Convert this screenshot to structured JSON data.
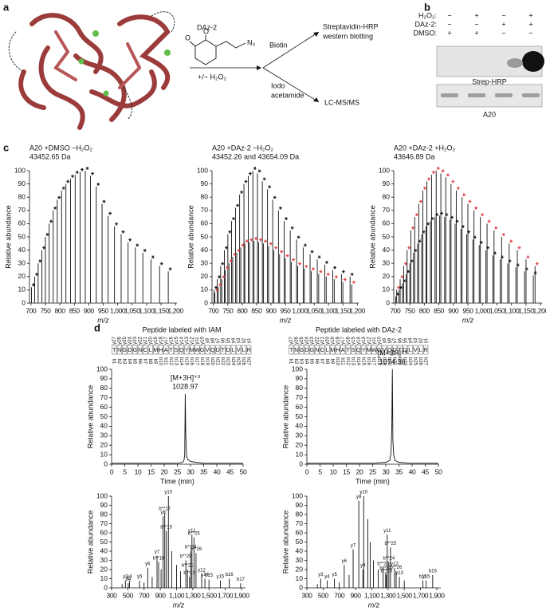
{
  "panel_labels": [
    "a",
    "b",
    "c",
    "d"
  ],
  "scheme": {
    "reagent": "DAz-2",
    "molecule_atoms": [
      "O",
      "O",
      "N₃"
    ],
    "condition": "+/− H₂O₂",
    "branch_top": "Biotin",
    "branch_bottom": [
      "Iodo",
      "acetamide"
    ],
    "out_top": [
      "Streptavidin-HRP",
      "western blotting"
    ],
    "out_bottom": "LC-MS/MS"
  },
  "blot": {
    "row_labels": [
      "H₂O₂:",
      "DAz-2:",
      "DMSO:"
    ],
    "signs": [
      [
        "−",
        "+",
        "−",
        "+"
      ],
      [
        "−",
        "−",
        "+",
        "+"
      ],
      [
        "+",
        "+",
        "−",
        "−"
      ]
    ],
    "captions": [
      "Strep-HRP",
      "A20"
    ]
  },
  "peptide": {
    "titles": [
      "Peptide labeled with IAM",
      "Peptide labeled with DAz-2"
    ],
    "residues": [
      "T",
      "N",
      "G",
      "D",
      "G",
      "N",
      "C",
      "L",
      "M",
      "H",
      "A",
      "T",
      "S",
      "Q",
      "Y",
      "M",
      "W",
      "G",
      "V",
      "Q",
      "D",
      "T",
      "D",
      "L",
      "V",
      "L",
      "R"
    ],
    "y_labels": [
      "y27",
      "y26",
      "y25",
      "y24",
      "y23",
      "y22",
      "y21",
      "y20",
      "y19",
      "y18",
      "y17",
      "y16",
      "y15",
      "y14",
      "y13",
      "y12",
      "y11",
      "y10",
      "y9",
      "y8",
      "y7",
      "y6",
      "y5",
      "y4",
      "y3",
      "y2",
      "y1"
    ],
    "b_labels": [
      "b1",
      "b2",
      "b3",
      "b4",
      "b5",
      "b6",
      "b7",
      "b8",
      "b9",
      "b10",
      "b11",
      "b12",
      "b13",
      "b14",
      "b15",
      "b16",
      "b17",
      "b18",
      "b19",
      "b20",
      "b21",
      "b22",
      "b23",
      "b24",
      "b25",
      "b26",
      "b27"
    ]
  },
  "chart_data": [
    {
      "type": "spectrum",
      "title": "A20 +DMSO −H₂O₂",
      "subtitle": "43452.65 Da",
      "xlabel": "m/z",
      "xlabel_italic": true,
      "ylabel": "Relative abundance",
      "marker": "asterisk",
      "xlim": [
        695,
        1205
      ],
      "ylim": [
        0,
        100
      ],
      "xticks": [
        700,
        750,
        800,
        850,
        900,
        950,
        {
          "value": 1000,
          "label": "1,000"
        },
        {
          "value": 1050,
          "label": "1,050"
        },
        {
          "value": 1100,
          "label": "1,100"
        },
        {
          "value": 1150,
          "label": "1,150"
        },
        {
          "value": 1200,
          "label": "1,200"
        }
      ],
      "yticks": [
        0,
        10,
        20,
        30,
        40,
        50,
        60,
        70,
        80,
        90,
        100
      ],
      "series": [
        {
          "color": "#111111",
          "x": [
            702,
            713,
            725,
            738,
            750,
            763,
            777,
            791,
            806,
            821,
            837,
            853,
            870,
            888,
            906,
            926,
            946,
            967,
            989,
            1012,
            1036,
            1061,
            1087,
            1115,
            1145,
            1175
          ],
          "values": [
            12,
            20,
            30,
            40,
            50,
            60,
            70,
            78,
            85,
            90,
            94,
            97,
            99,
            100,
            96,
            88,
            75,
            66,
            58,
            52,
            46,
            42,
            38,
            33,
            28,
            24
          ]
        }
      ]
    },
    {
      "type": "spectrum",
      "title": "A20 +DAz-2 −H₂O₂",
      "subtitle": "43452.26 and 43654.09 Da",
      "xlabel": "m/z",
      "xlabel_italic": true,
      "ylabel": "Relative abundance",
      "marker": "asterisk",
      "xlim": [
        695,
        1205
      ],
      "ylim": [
        0,
        100
      ],
      "xticks": [
        700,
        750,
        800,
        850,
        900,
        950,
        {
          "value": 1000,
          "label": "1,000"
        },
        {
          "value": 1050,
          "label": "1,050"
        },
        {
          "value": 1100,
          "label": "1,100"
        },
        {
          "value": 1150,
          "label": "1,150"
        },
        {
          "value": 1200,
          "label": "1,200"
        }
      ],
      "yticks": [
        0,
        10,
        20,
        30,
        40,
        50,
        60,
        70,
        80,
        90,
        100
      ],
      "series": [
        {
          "color": "#111111",
          "x": [
            702,
            713,
            725,
            738,
            750,
            763,
            777,
            791,
            806,
            821,
            837,
            853,
            870,
            888,
            906,
            926,
            946,
            967,
            989,
            1012,
            1036,
            1061,
            1087,
            1115,
            1145,
            1175
          ],
          "values": [
            10,
            18,
            28,
            40,
            52,
            62,
            72,
            82,
            90,
            96,
            100,
            98,
            92,
            86,
            78,
            70,
            62,
            55,
            48,
            42,
            37,
            33,
            29,
            25,
            22,
            20
          ]
        },
        {
          "color": "#e0393e",
          "x": [
            705,
            717,
            729,
            741,
            754,
            767,
            781,
            795,
            809,
            825,
            841,
            857,
            874,
            892,
            910,
            930,
            950,
            971,
            993,
            1016,
            1040,
            1066,
            1092,
            1120,
            1150,
            1181
          ],
          "values": [
            8,
            12,
            18,
            25,
            30,
            35,
            38,
            42,
            45,
            46,
            47,
            46,
            45,
            43,
            40,
            37,
            34,
            31,
            28,
            26,
            24,
            22,
            20,
            18,
            16,
            14
          ]
        }
      ]
    },
    {
      "type": "spectrum",
      "title": "A20 +DAz-2 +H₂O₂",
      "subtitle": "43646.89 Da",
      "xlabel": "m/z",
      "xlabel_italic": true,
      "ylabel": "Relative abundance",
      "marker": "asterisk",
      "xlim": [
        695,
        1205
      ],
      "ylim": [
        0,
        100
      ],
      "xticks": [
        700,
        750,
        800,
        850,
        900,
        950,
        {
          "value": 1000,
          "label": "1,000"
        },
        {
          "value": 1050,
          "label": "1,050"
        },
        {
          "value": 1100,
          "label": "1,100"
        },
        {
          "value": 1150,
          "label": "1,150"
        },
        {
          "value": 1200,
          "label": "1,200"
        }
      ],
      "yticks": [
        0,
        10,
        20,
        30,
        40,
        50,
        60,
        70,
        80,
        90,
        100
      ],
      "series": [
        {
          "color": "#111111",
          "x": [
            702,
            713,
            725,
            738,
            750,
            763,
            777,
            791,
            806,
            821,
            837,
            853,
            870,
            888,
            906,
            926,
            946,
            967,
            989,
            1012,
            1036,
            1061,
            1087,
            1115,
            1145,
            1175
          ],
          "values": [
            5,
            10,
            15,
            22,
            30,
            38,
            45,
            52,
            58,
            62,
            65,
            66,
            65,
            63,
            60,
            56,
            52,
            48,
            44,
            40,
            36,
            33,
            30,
            27,
            24,
            21
          ]
        },
        {
          "color": "#e0393e",
          "x": [
            705,
            717,
            729,
            741,
            754,
            767,
            781,
            795,
            809,
            825,
            841,
            857,
            874,
            892,
            910,
            930,
            950,
            971,
            993,
            1016,
            1040,
            1066,
            1092,
            1120,
            1150,
            1181
          ],
          "values": [
            10,
            18,
            28,
            40,
            55,
            65,
            75,
            85,
            92,
            97,
            100,
            98,
            95,
            90,
            85,
            80,
            75,
            70,
            65,
            60,
            55,
            50,
            45,
            40,
            33,
            28
          ]
        }
      ]
    },
    {
      "type": "line",
      "annotation": [
        "[M+3H]⁺³",
        "1028.97"
      ],
      "xlabel": "Time (min)",
      "ylabel": "Relative abundance",
      "xlim": [
        0,
        50
      ],
      "ylim": [
        0,
        100
      ],
      "xticks": [
        0,
        5,
        10,
        15,
        20,
        25,
        30,
        35,
        40,
        45,
        50
      ],
      "yticks": [
        0,
        10,
        20,
        30,
        40,
        50,
        60,
        70,
        80,
        90,
        100
      ],
      "series": [
        {
          "color": "#111111",
          "x": [
            0,
            5,
            10,
            15,
            20,
            25,
            27,
            27.5,
            27.8,
            28,
            28.2,
            28.5,
            29,
            30,
            32,
            35,
            40,
            45,
            50
          ],
          "values": [
            1,
            1,
            1,
            1,
            1,
            1,
            2,
            4,
            10,
            74,
            30,
            8,
            5,
            3,
            2,
            1,
            1,
            1,
            1
          ]
        }
      ]
    },
    {
      "type": "line",
      "annotation": [
        "[M+3H]⁺³",
        "1074.36"
      ],
      "xlabel": "Time (min)",
      "ylabel": "Relative abundance",
      "xlim": [
        0,
        50
      ],
      "ylim": [
        0,
        100
      ],
      "xticks": [
        0,
        5,
        10,
        15,
        20,
        25,
        30,
        35,
        40,
        45,
        50
      ],
      "yticks": [
        0,
        10,
        20,
        30,
        40,
        50,
        60,
        70,
        80,
        90,
        100
      ],
      "series": [
        {
          "color": "#111111",
          "x": [
            0,
            5,
            10,
            15,
            20,
            25,
            30,
            31.5,
            32,
            32.3,
            32.5,
            32.7,
            33,
            33.5,
            35,
            40,
            45,
            50
          ],
          "values": [
            1,
            1,
            1,
            1,
            1,
            1,
            2,
            4,
            12,
            40,
            100,
            25,
            10,
            4,
            2,
            1,
            1,
            1
          ]
        }
      ]
    },
    {
      "type": "spectrum",
      "xlabel": "m/z",
      "xlabel_italic": true,
      "ylabel": "Relative abundance",
      "xlim": [
        300,
        1950
      ],
      "ylim": [
        0,
        100
      ],
      "xticks": [
        300,
        500,
        700,
        900,
        {
          "value": 1100,
          "label": "1,100"
        },
        {
          "value": 1300,
          "label": "1,300"
        },
        {
          "value": 1500,
          "label": "1,500"
        },
        {
          "value": 1700,
          "label": "1,700"
        },
        {
          "value": 1900,
          "label": "1,900"
        }
      ],
      "yticks": [
        0,
        10,
        20,
        30,
        40,
        50,
        60,
        70,
        80,
        90,
        100
      ],
      "series": [
        {
          "color": "#111111",
          "x": [
            430,
            470,
            505,
            520,
            645,
            700,
            745,
            800,
            860,
            880,
            910,
            935,
            955,
            975,
            1000,
            1040,
            1100,
            1150,
            1215,
            1235,
            1260,
            1275,
            1290,
            1315,
            1340,
            1410,
            1450,
            1500,
            1640,
            1750,
            1890
          ],
          "values": [
            4,
            8,
            5,
            8,
            8,
            6,
            22,
            12,
            35,
            28,
            20,
            78,
            82,
            62,
            100,
            40,
            25,
            18,
            30,
            20,
            12,
            40,
            58,
            55,
            38,
            15,
            10,
            9,
            8,
            10,
            5
          ],
          "labels": [
            null,
            "y3",
            "b4",
            "y4",
            "y5",
            null,
            "y6",
            null,
            "y7",
            "b**16",
            null,
            "y8",
            "b**17",
            "b**15",
            "y10",
            null,
            null,
            null,
            "b**20",
            "b**21",
            "b**22",
            "b**24",
            "y11",
            "b**25",
            "b**26",
            "y12",
            "y14",
            "b15",
            "y15",
            "b16",
            "b17"
          ]
        }
      ]
    },
    {
      "type": "spectrum",
      "xlabel": "m/z",
      "xlabel_italic": true,
      "ylabel": "Relative abundance",
      "xlim": [
        300,
        1950
      ],
      "ylim": [
        0,
        100
      ],
      "xticks": [
        300,
        500,
        700,
        900,
        {
          "value": 1100,
          "label": "1,100"
        },
        {
          "value": 1300,
          "label": "1,300"
        },
        {
          "value": 1500,
          "label": "1,500"
        },
        {
          "value": 1700,
          "label": "1,700"
        },
        {
          "value": 1900,
          "label": "1,900"
        }
      ],
      "yticks": [
        0,
        10,
        20,
        30,
        40,
        50,
        60,
        70,
        80,
        90,
        100
      ],
      "series": [
        {
          "color": "#111111",
          "x": [
            430,
            470,
            550,
            640,
            700,
            760,
            820,
            870,
            940,
            990,
            1000,
            1050,
            1080,
            1120,
            1180,
            1240,
            1270,
            1280,
            1290,
            1310,
            1330,
            1380,
            1400,
            1440,
            1500,
            1730,
            1770,
            1850
          ],
          "values": [
            4,
            10,
            8,
            10,
            6,
            25,
            14,
            42,
            95,
            20,
            100,
            75,
            50,
            30,
            20,
            22,
            17,
            14,
            58,
            28,
            44,
            22,
            18,
            12,
            8,
            8,
            8,
            14
          ],
          "labels": [
            null,
            "y3",
            "y4",
            "y5",
            null,
            "y6",
            null,
            "y7",
            "y8",
            "y9",
            "y10",
            null,
            null,
            null,
            null,
            "b**20",
            "b**22",
            "b**23",
            "y11",
            "b**24",
            "b**25",
            "y12",
            "b**26",
            "y13",
            null,
            "b11",
            "y15",
            "b16"
          ]
        }
      ]
    }
  ]
}
